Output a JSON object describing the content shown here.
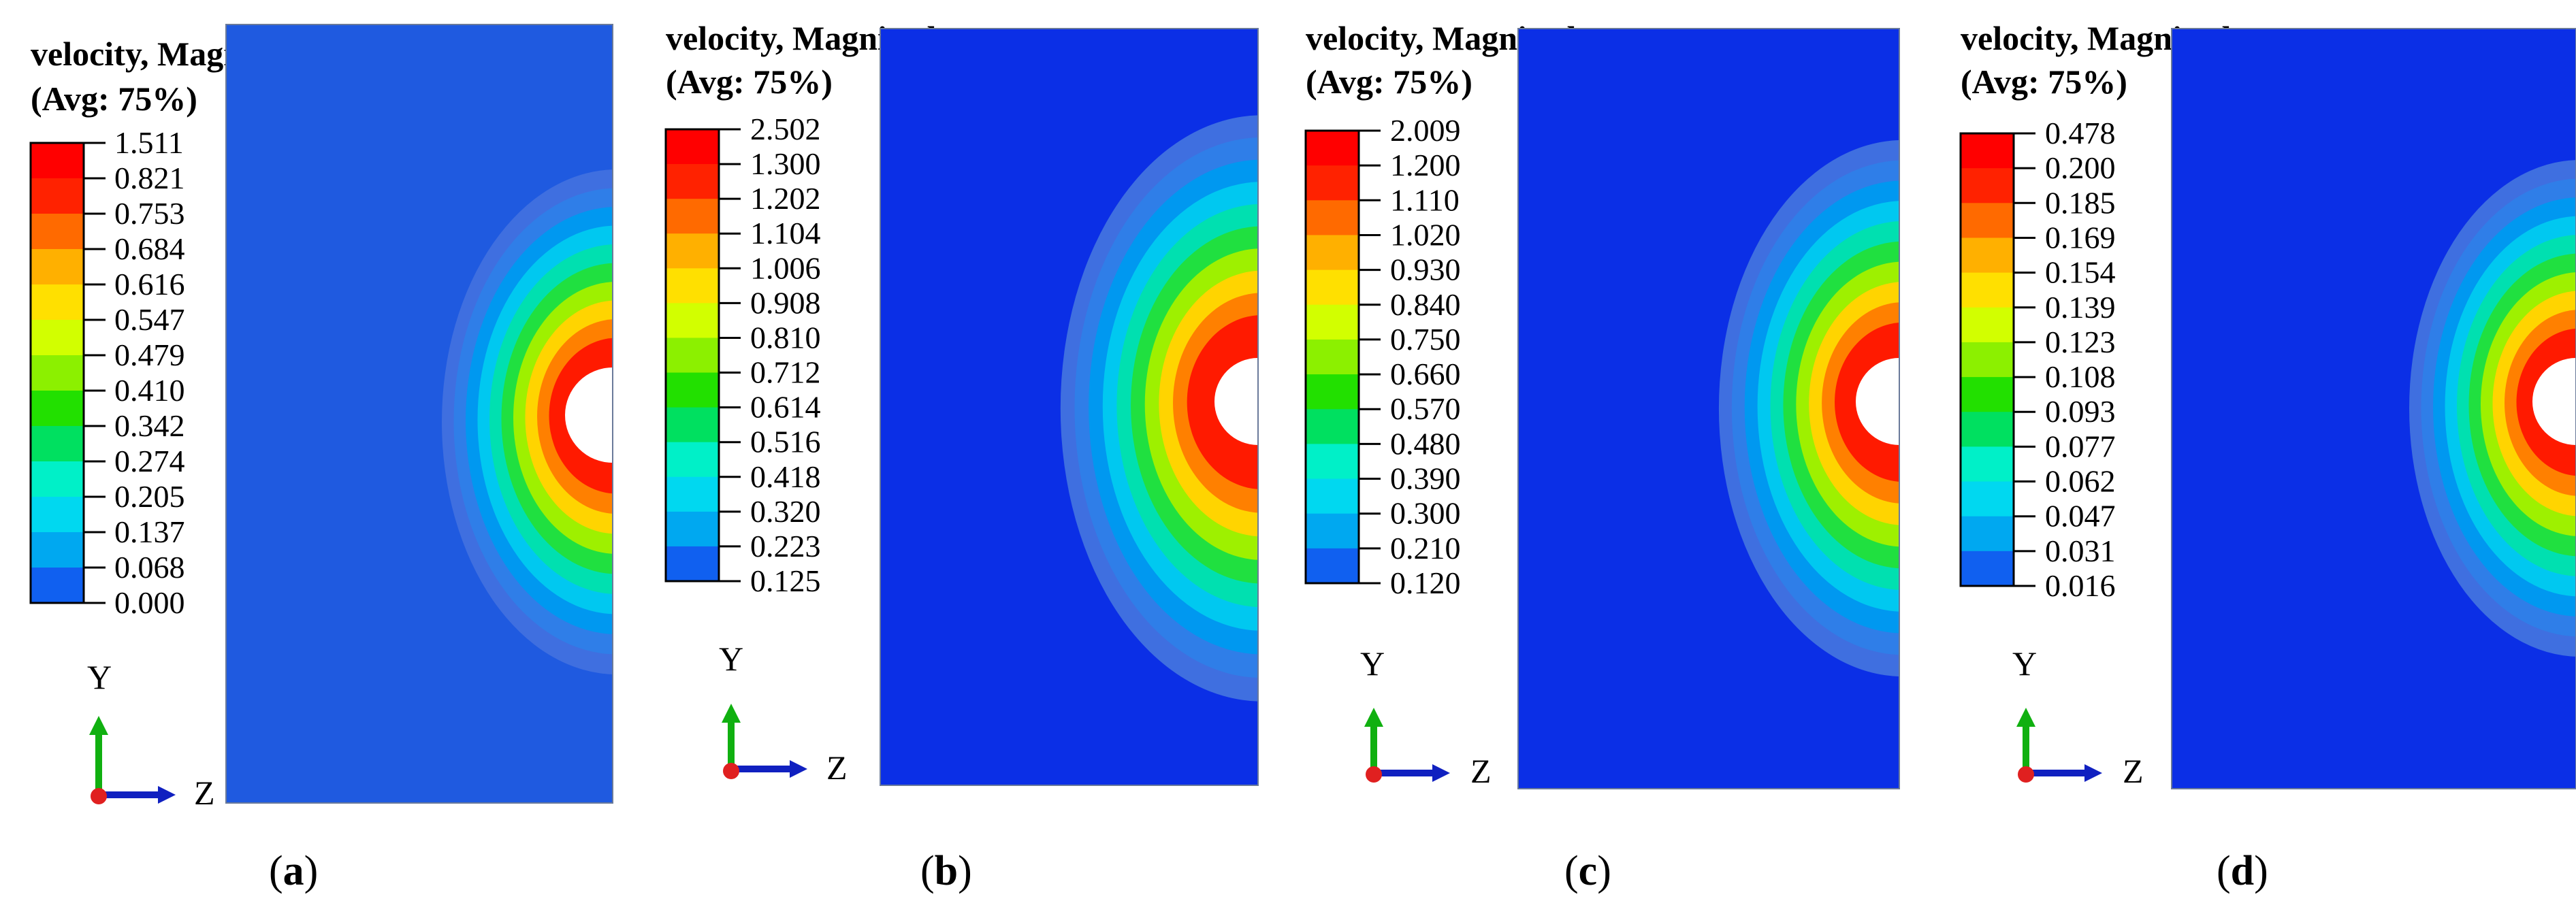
{
  "panels": [
    {
      "id": "a",
      "legend": {
        "title_line1": "velocity, Magnitude",
        "title_line2": "(Avg: 75%)",
        "values": [
          "1.511",
          "0.821",
          "0.753",
          "0.684",
          "0.616",
          "0.547",
          "0.479",
          "0.410",
          "0.342",
          "0.274",
          "0.205",
          "0.137",
          "0.068",
          "0.000"
        ]
      },
      "axis": {
        "y_label": "Y",
        "z_label": "Z"
      },
      "caption": {
        "open": "(",
        "letter": "a",
        "close": ")"
      },
      "field_color": "#1f5ae0"
    },
    {
      "id": "b",
      "legend": {
        "title_line1": "velocity, Magnitude",
        "title_line2": "(Avg: 75%)",
        "values": [
          "2.502",
          "1.300",
          "1.202",
          "1.104",
          "1.006",
          "0.908",
          "0.810",
          "0.712",
          "0.614",
          "0.516",
          "0.418",
          "0.320",
          "0.223",
          "0.125"
        ]
      },
      "axis": {
        "y_label": "Y",
        "z_label": "Z"
      },
      "caption": {
        "open": "(",
        "letter": "b",
        "close": ")"
      },
      "field_color": "#0b2fe6"
    },
    {
      "id": "c",
      "legend": {
        "title_line1": "velocity, Magnitude",
        "title_line2": "(Avg: 75%)",
        "values": [
          "2.009",
          "1.200",
          "1.110",
          "1.020",
          "0.930",
          "0.840",
          "0.750",
          "0.660",
          "0.570",
          "0.480",
          "0.390",
          "0.300",
          "0.210",
          "0.120"
        ]
      },
      "axis": {
        "y_label": "Y",
        "z_label": "Z"
      },
      "caption": {
        "open": "(",
        "letter": "c",
        "close": ")"
      },
      "field_color": "#0b2fe6"
    },
    {
      "id": "d",
      "legend": {
        "title_line1": "velocity, Magnitude",
        "title_line2": "(Avg: 75%)",
        "values": [
          "0.478",
          "0.200",
          "0.185",
          "0.169",
          "0.154",
          "0.139",
          "0.123",
          "0.108",
          "0.093",
          "0.077",
          "0.062",
          "0.047",
          "0.031",
          "0.016"
        ]
      },
      "axis": {
        "y_label": "Y",
        "z_label": "Z"
      },
      "caption": {
        "open": "(",
        "letter": "d",
        "close": ")"
      },
      "field_color": "#0b2fe6"
    }
  ],
  "colormap": [
    "#ff0000",
    "#ff2200",
    "#ff6a00",
    "#ffb000",
    "#ffe000",
    "#d2ff00",
    "#8cf000",
    "#22e000",
    "#00e060",
    "#00f0c8",
    "#00d8f0",
    "#00a8f0",
    "#1060f0",
    "#0a20f0"
  ],
  "contour_rings": [
    "#ff1a00",
    "#ff8000",
    "#ffd400",
    "#9ef000",
    "#20e040",
    "#00e0b0",
    "#00c8f0",
    "#0098f0",
    "#2f7ee8",
    "#3f6fe0"
  ],
  "axis_colors": {
    "y_arrow": "#10b010",
    "z_arrow": "#1020c0",
    "x_dot": "#e02020"
  }
}
